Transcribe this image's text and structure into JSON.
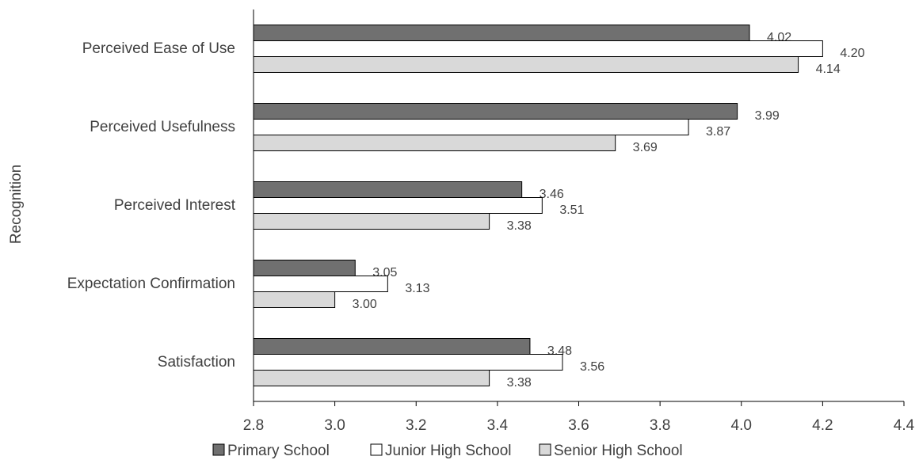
{
  "chart_data": {
    "type": "bar",
    "orientation": "horizontal",
    "categories": [
      "Perceived Ease of Use",
      "Perceived Usefulness",
      "Perceived Interest",
      "Expectation Confirmation",
      "Satisfaction"
    ],
    "series": [
      {
        "name": "Primary School",
        "values": [
          4.02,
          3.99,
          3.46,
          3.05,
          3.48
        ],
        "color": "#707070"
      },
      {
        "name": "Junior High School",
        "values": [
          4.2,
          3.87,
          3.51,
          3.13,
          3.56
        ],
        "color": "#ffffff"
      },
      {
        "name": "Senior High School",
        "values": [
          4.14,
          3.69,
          3.38,
          3.0,
          3.38
        ],
        "color": "#d9d9d9"
      }
    ],
    "data_labels": [
      [
        "4.02",
        "3.99",
        "3.46",
        "3.05",
        "3.48"
      ],
      [
        "4.20",
        "3.87",
        "3.51",
        "3.13",
        "3.56"
      ],
      [
        "4.14",
        "3.69",
        "3.38",
        "3.00",
        "3.38"
      ]
    ],
    "xticks": [
      "2.8",
      "3.0",
      "3.2",
      "3.4",
      "3.6",
      "3.8",
      "4.0",
      "4.2",
      "4.4"
    ],
    "xlim": [
      2.8,
      4.4
    ],
    "title": "",
    "xlabel": "",
    "ylabel": "Recognition",
    "grid": false,
    "legend_position": "bottom"
  }
}
